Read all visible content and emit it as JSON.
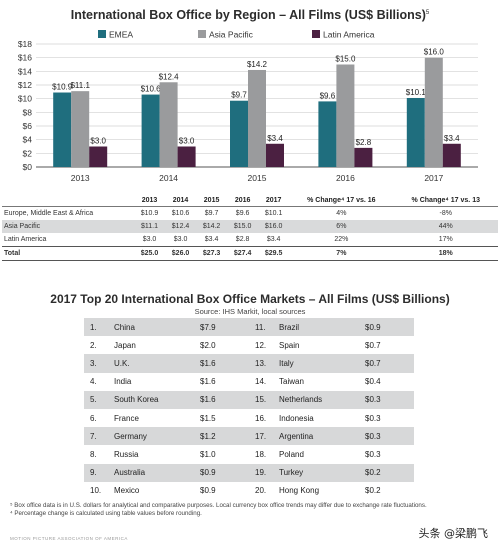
{
  "chart_title": "International Box Office by Region – All Films (US$ Billions)",
  "chart_title_note": "5",
  "chart_data": {
    "type": "bar",
    "categories": [
      "2013",
      "2014",
      "2015",
      "2016",
      "2017"
    ],
    "series": [
      {
        "name": "EMEA",
        "values": [
          10.9,
          10.6,
          9.7,
          9.6,
          10.1
        ],
        "labels": [
          "$10.9",
          "$10.6",
          "$9.7",
          "$9.6",
          "$10.1"
        ],
        "color": "#1f6e7e"
      },
      {
        "name": "Asia Pacific",
        "values": [
          11.1,
          12.4,
          14.2,
          15.0,
          16.0
        ],
        "labels": [
          "$11.1",
          "$12.4",
          "$14.2",
          "$15.0",
          "$16.0"
        ],
        "color": "#9a9b9d"
      },
      {
        "name": "Latin America",
        "values": [
          3.0,
          3.0,
          3.4,
          2.8,
          3.4
        ],
        "labels": [
          "$3.0",
          "$3.0",
          "$3.4",
          "$2.8",
          "$3.4"
        ],
        "color": "#4b2041"
      }
    ],
    "ylim": [
      0,
      18
    ],
    "yticks": [
      "$0",
      "$2",
      "$4",
      "$6",
      "$8",
      "$10",
      "$12",
      "$14",
      "$16",
      "$18"
    ],
    "legend_position": "top"
  },
  "summary_table": {
    "headers": [
      "",
      "2013",
      "2014",
      "2015",
      "2016",
      "2017",
      "% Change⁴ 17 vs. 16",
      "% Change⁴ 17 vs. 13"
    ],
    "rows": [
      {
        "cells": [
          "Europe, Middle East & Africa",
          "$10.9",
          "$10.6",
          "$9.7",
          "$9.6",
          "$10.1",
          "4%",
          "-8%"
        ]
      },
      {
        "cells": [
          "Asia Pacific",
          "$11.1",
          "$12.4",
          "$14.2",
          "$15.0",
          "$16.0",
          "6%",
          "44%"
        ]
      },
      {
        "cells": [
          "Latin America",
          "$3.0",
          "$3.0",
          "$3.4",
          "$2.8",
          "$3.4",
          "22%",
          "17%"
        ]
      },
      {
        "cells": [
          "Total",
          "$25.0",
          "$26.0",
          "$27.3",
          "$27.4",
          "$29.5",
          "7%",
          "18%"
        ]
      }
    ]
  },
  "markets_title": "2017 Top 20 International Box Office Markets – All Films (US$ Billions)",
  "markets_source": "Source: IHS Markit, local sources",
  "markets": [
    {
      "left": [
        "1.",
        "China",
        "$7.9"
      ],
      "right": [
        "11.",
        "Brazil",
        "$0.9"
      ]
    },
    {
      "left": [
        "2.",
        "Japan",
        "$2.0"
      ],
      "right": [
        "12.",
        "Spain",
        "$0.7"
      ]
    },
    {
      "left": [
        "3.",
        "U.K.",
        "$1.6"
      ],
      "right": [
        "13.",
        "Italy",
        "$0.7"
      ]
    },
    {
      "left": [
        "4.",
        "India",
        "$1.6"
      ],
      "right": [
        "14.",
        "Taiwan",
        "$0.4"
      ]
    },
    {
      "left": [
        "5.",
        "South Korea",
        "$1.6"
      ],
      "right": [
        "15.",
        "Netherlands",
        "$0.3"
      ]
    },
    {
      "left": [
        "6.",
        "France",
        "$1.5"
      ],
      "right": [
        "16.",
        "Indonesia",
        "$0.3"
      ]
    },
    {
      "left": [
        "7.",
        "Germany",
        "$1.2"
      ],
      "right": [
        "17.",
        "Argentina",
        "$0.3"
      ]
    },
    {
      "left": [
        "8.",
        "Russia",
        "$1.0"
      ],
      "right": [
        "18.",
        "Poland",
        "$0.3"
      ]
    },
    {
      "left": [
        "9.",
        "Australia",
        "$0.9"
      ],
      "right": [
        "19.",
        "Turkey",
        "$0.2"
      ]
    },
    {
      "left": [
        "10.",
        "Mexico",
        "$0.9"
      ],
      "right": [
        "20.",
        "Hong Kong",
        "$0.2"
      ]
    }
  ],
  "footnotes": [
    "⁵ Box office data is in U.S. dollars for analytical and comparative purposes. Local currency box office trends may differ due to exchange rate fluctuations.",
    "⁴ Percentage change is calculated using table values before rounding."
  ],
  "logo_text": "MOTION PICTURE ASSOCIATION OF AMERICA",
  "watermark": "头条 @梁鹏飞"
}
